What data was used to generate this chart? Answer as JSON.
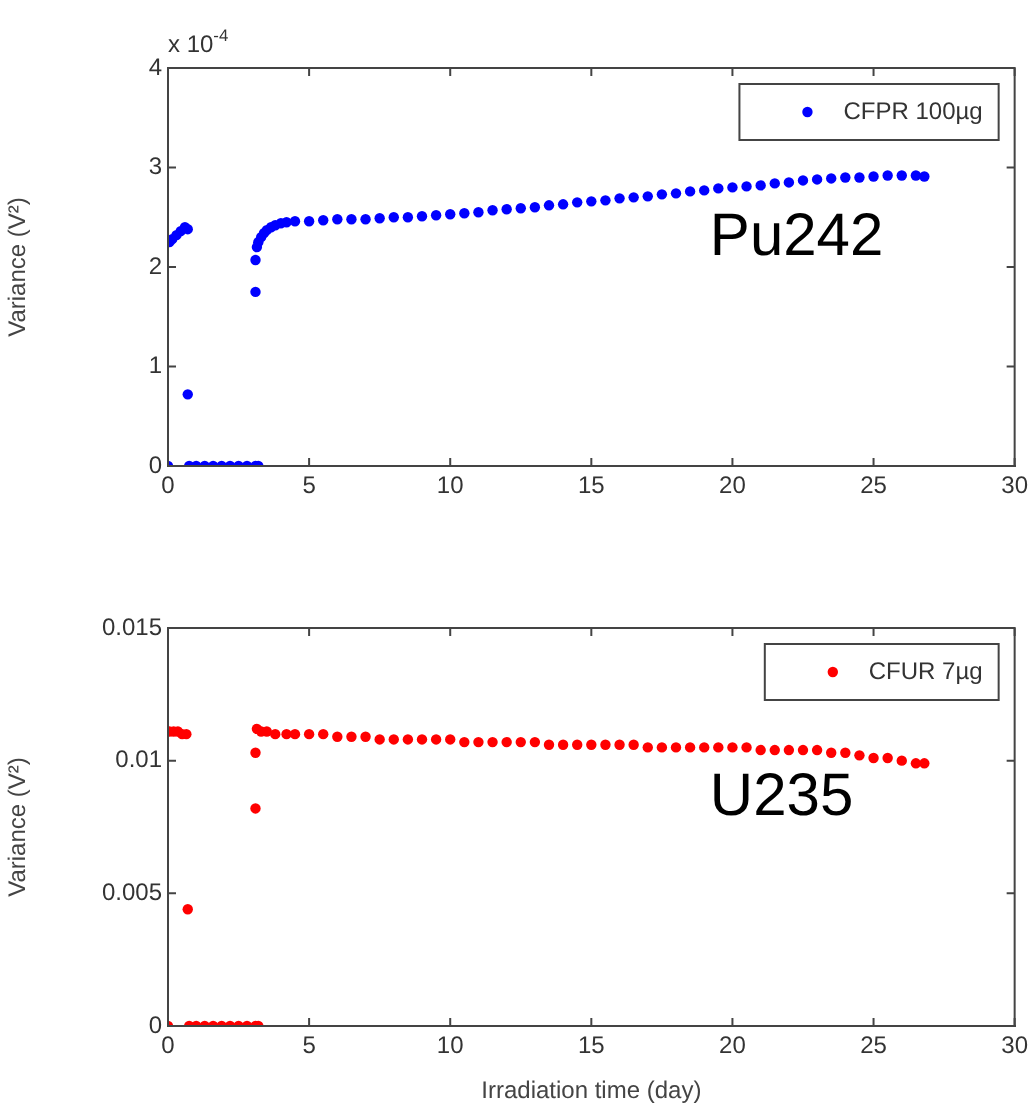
{
  "chart_data": [
    {
      "type": "scatter",
      "ylabel": "Variance (V²)",
      "annotations": [
        "x 10$^{-4}$",
        "Pu242"
      ],
      "legend": "top right",
      "marker": "circle",
      "grid": false,
      "xlim": [
        0,
        30
      ],
      "xticks": [
        0,
        5,
        10,
        15,
        20,
        25,
        30
      ],
      "ylim": [
        0,
        4
      ],
      "yticks": [
        0,
        1,
        2,
        3,
        4
      ],
      "series": [
        {
          "name": "CFPR 100µg",
          "color": "#0000ff",
          "x": [
            0,
            0.05,
            0.15,
            0.3,
            0.45,
            0.6,
            0.7,
            0.7,
            0.75,
            1.0,
            1.3,
            1.6,
            1.9,
            2.2,
            2.5,
            2.8,
            3.1,
            3.2,
            3.1,
            3.1,
            3.15,
            3.2,
            3.3,
            3.4,
            3.5,
            3.65,
            3.8,
            4.0,
            4.2,
            4.5,
            5,
            5.5,
            6,
            6.5,
            7,
            7.5,
            8,
            8.5,
            9,
            9.5,
            10,
            10.5,
            11,
            11.5,
            12,
            12.5,
            13,
            13.5,
            14,
            14.5,
            15,
            15.5,
            16,
            16.5,
            17,
            17.5,
            18,
            18.5,
            19,
            19.5,
            20,
            20.5,
            21,
            21.5,
            22,
            22.5,
            23,
            23.5,
            24,
            24.5,
            25,
            25.5,
            26,
            26.5,
            26.8
          ],
          "values": [
            0,
            2.25,
            2.28,
            2.32,
            2.36,
            2.4,
            2.38,
            0.72,
            0,
            0,
            0,
            0,
            0,
            0,
            0,
            0,
            0,
            0,
            1.75,
            2.07,
            2.2,
            2.25,
            2.3,
            2.34,
            2.37,
            2.4,
            2.42,
            2.44,
            2.45,
            2.46,
            2.46,
            2.47,
            2.48,
            2.48,
            2.48,
            2.49,
            2.5,
            2.5,
            2.51,
            2.52,
            2.53,
            2.54,
            2.55,
            2.57,
            2.58,
            2.59,
            2.6,
            2.62,
            2.63,
            2.65,
            2.66,
            2.67,
            2.69,
            2.7,
            2.71,
            2.73,
            2.74,
            2.76,
            2.77,
            2.79,
            2.8,
            2.81,
            2.82,
            2.84,
            2.85,
            2.87,
            2.88,
            2.89,
            2.9,
            2.9,
            2.91,
            2.92,
            2.92,
            2.92,
            2.91
          ]
        }
      ]
    },
    {
      "type": "scatter",
      "xlabel": "Irradiation time (day)",
      "ylabel": "Variance (V²)",
      "annotations": [
        "U235"
      ],
      "legend": "top right",
      "marker": "circle",
      "grid": false,
      "xlim": [
        0,
        30
      ],
      "xticks": [
        0,
        5,
        10,
        15,
        20,
        25,
        30
      ],
      "ylim": [
        0,
        0.015
      ],
      "yticks": [
        0,
        0.005,
        0.01,
        0.015
      ],
      "series": [
        {
          "name": "CFUR 7µg",
          "color": "#ff0000",
          "x": [
            0,
            0.05,
            0.2,
            0.35,
            0.5,
            0.65,
            0.7,
            0.75,
            1.0,
            1.3,
            1.6,
            1.9,
            2.2,
            2.5,
            2.8,
            3.1,
            3.2,
            3.1,
            3.1,
            3.15,
            3.3,
            3.5,
            3.8,
            4.2,
            4.5,
            5,
            5.5,
            6,
            6.5,
            7,
            7.5,
            8,
            8.5,
            9,
            9.5,
            10,
            10.5,
            11,
            11.5,
            12,
            12.5,
            13,
            13.5,
            14,
            14.5,
            15,
            15.5,
            16,
            16.5,
            17,
            17.5,
            18,
            18.5,
            19,
            19.5,
            20,
            20.5,
            21,
            21.5,
            22,
            22.5,
            23,
            23.5,
            24,
            24.5,
            25,
            25.5,
            26,
            26.5,
            26.8
          ],
          "values": [
            0,
            0.0111,
            0.0111,
            0.0111,
            0.011,
            0.011,
            0.0044,
            0,
            0,
            0,
            0,
            0,
            0,
            0,
            0,
            0,
            0,
            0.0082,
            0.0103,
            0.0112,
            0.0111,
            0.0111,
            0.011,
            0.011,
            0.011,
            0.011,
            0.011,
            0.0109,
            0.0109,
            0.0109,
            0.0108,
            0.0108,
            0.0108,
            0.0108,
            0.0108,
            0.0108,
            0.0107,
            0.0107,
            0.0107,
            0.0107,
            0.0107,
            0.0107,
            0.0106,
            0.0106,
            0.0106,
            0.0106,
            0.0106,
            0.0106,
            0.0106,
            0.0105,
            0.0105,
            0.0105,
            0.0105,
            0.0105,
            0.0105,
            0.0105,
            0.0105,
            0.0104,
            0.0104,
            0.0104,
            0.0104,
            0.0104,
            0.0103,
            0.0103,
            0.0102,
            0.0101,
            0.0101,
            0.01,
            0.0099,
            0.0099
          ]
        }
      ]
    }
  ]
}
